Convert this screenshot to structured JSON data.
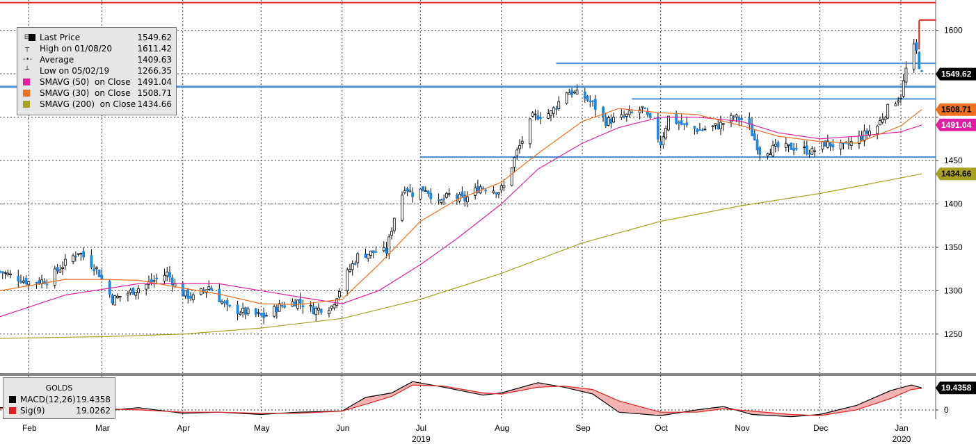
{
  "legend": {
    "rows": [
      {
        "symbol": "box",
        "color": "#000000",
        "label": "Last Price",
        "value": "1549.62"
      },
      {
        "symbol": "high",
        "label": "High on 01/08/20",
        "value": "1611.42"
      },
      {
        "symbol": "avg",
        "label": "Average",
        "value": "1409.63"
      },
      {
        "symbol": "low",
        "label": "Low on 05/02/19",
        "value": "1266.35"
      },
      {
        "symbol": "box",
        "color": "#e020a0",
        "label": "SMAVG (50)  on Close",
        "value": "1491.04"
      },
      {
        "symbol": "box",
        "color": "#f07020",
        "label": "SMAVG (30)  on Close",
        "value": "1508.71"
      },
      {
        "symbol": "box",
        "color": "#a8a020",
        "label": "SMAVG (200)  on Close",
        "value": "1434.66"
      }
    ]
  },
  "macd_legend": {
    "title": "GOLDS",
    "rows": [
      {
        "color": "#000000",
        "label": "MACD(12,26)",
        "value": "19.4358"
      },
      {
        "color": "#e02020",
        "label": "Sig(9)",
        "value": "19.0262"
      }
    ]
  },
  "badges": [
    {
      "value": "1549.62",
      "bg": "#000000",
      "fg": "#ffffff"
    },
    {
      "value": "1508.71",
      "bg": "#f07020",
      "fg": "#000000"
    },
    {
      "value": "1491.04",
      "bg": "#e020a0",
      "fg": "#ffffff"
    },
    {
      "value": "1434.66",
      "bg": "#a8a020",
      "fg": "#000000"
    },
    {
      "value": "19.4358",
      "bg": "#000000",
      "fg": "#ffffff"
    }
  ],
  "chart_data": [
    {
      "type": "candlestick",
      "title": "",
      "ylim": [
        1205,
        1635
      ],
      "y_ticks": [
        1250,
        1300,
        1350,
        1400,
        1450,
        1500,
        1550,
        1600
      ],
      "y_tick_labels": [
        "1250",
        "1300",
        "1350",
        "1400",
        "1450",
        "",
        "",
        "1600"
      ],
      "x_range": [
        "2019-01-21",
        "2020-01-09"
      ],
      "x_ticks": [
        {
          "date": "2019-02-01",
          "label": "Feb"
        },
        {
          "date": "2019-03-01",
          "label": "Mar"
        },
        {
          "date": "2019-04-01",
          "label": "Apr"
        },
        {
          "date": "2019-05-01",
          "label": "May"
        },
        {
          "date": "2019-06-01",
          "label": "Jun"
        },
        {
          "date": "2019-07-01",
          "label": "Jul"
        },
        {
          "date": "2019-08-01",
          "label": "Aug"
        },
        {
          "date": "2019-09-01",
          "label": "Sep"
        },
        {
          "date": "2019-10-01",
          "label": "Oct"
        },
        {
          "date": "2019-11-01",
          "label": "Nov"
        },
        {
          "date": "2019-12-01",
          "label": "Dec"
        },
        {
          "date": "2020-01-01",
          "label": "Jan"
        }
      ],
      "year_labels": [
        {
          "date": "2019-07-01",
          "label": "2019"
        },
        {
          "date": "2020-01-01",
          "label": "2020"
        }
      ],
      "price_path": [
        [
          "2019-01-21",
          1322
        ],
        [
          "2019-02-01",
          1310
        ],
        [
          "2019-02-08",
          1312
        ],
        [
          "2019-02-15",
          1332
        ],
        [
          "2019-02-20",
          1345
        ],
        [
          "2019-02-27",
          1325
        ],
        [
          "2019-03-05",
          1290
        ],
        [
          "2019-03-13",
          1300
        ],
        [
          "2019-03-20",
          1310
        ],
        [
          "2019-03-26",
          1320
        ],
        [
          "2019-03-31",
          1298
        ],
        [
          "2019-04-05",
          1292
        ],
        [
          "2019-04-11",
          1305
        ],
        [
          "2019-04-18",
          1280
        ],
        [
          "2019-04-25",
          1275
        ],
        [
          "2019-05-02",
          1270
        ],
        [
          "2019-05-08",
          1282
        ],
        [
          "2019-05-15",
          1288
        ],
        [
          "2019-05-21",
          1278
        ],
        [
          "2019-05-28",
          1282
        ],
        [
          "2019-06-03",
          1320
        ],
        [
          "2019-06-07",
          1340
        ],
        [
          "2019-06-14",
          1345
        ],
        [
          "2019-06-18",
          1345
        ],
        [
          "2019-06-21",
          1385
        ],
        [
          "2019-06-25",
          1420
        ],
        [
          "2019-06-28",
          1412
        ],
        [
          "2019-07-03",
          1418
        ],
        [
          "2019-07-08",
          1400
        ],
        [
          "2019-07-12",
          1410
        ],
        [
          "2019-07-18",
          1405
        ],
        [
          "2019-07-24",
          1420
        ],
        [
          "2019-07-31",
          1415
        ],
        [
          "2019-08-02",
          1420
        ],
        [
          "2019-08-07",
          1460
        ],
        [
          "2019-08-13",
          1500
        ],
        [
          "2019-08-20",
          1505
        ],
        [
          "2019-08-26",
          1530
        ],
        [
          "2019-09-01",
          1525
        ],
        [
          "2019-09-05",
          1515
        ],
        [
          "2019-09-10",
          1495
        ],
        [
          "2019-09-17",
          1500
        ],
        [
          "2019-09-24",
          1510
        ],
        [
          "2019-09-28",
          1490
        ],
        [
          "2019-10-01",
          1470
        ],
        [
          "2019-10-04",
          1500
        ],
        [
          "2019-10-10",
          1490
        ],
        [
          "2019-10-16",
          1485
        ],
        [
          "2019-10-23",
          1490
        ],
        [
          "2019-10-29",
          1500
        ],
        [
          "2019-11-03",
          1495
        ],
        [
          "2019-11-08",
          1460
        ],
        [
          "2019-11-15",
          1465
        ],
        [
          "2019-11-22",
          1465
        ],
        [
          "2019-11-28",
          1460
        ],
        [
          "2019-12-03",
          1470
        ],
        [
          "2019-12-10",
          1465
        ],
        [
          "2019-12-17",
          1478
        ],
        [
          "2019-12-23",
          1490
        ],
        [
          "2019-12-27",
          1510
        ],
        [
          "2020-01-01",
          1525
        ],
        [
          "2020-01-03",
          1555
        ],
        [
          "2020-01-06",
          1580
        ],
        [
          "2020-01-07",
          1575
        ],
        [
          "2020-01-08",
          1560
        ],
        [
          "2020-01-09",
          1549.62
        ]
      ],
      "last_price": 1549.62,
      "high": {
        "date": "2020-01-08",
        "value": 1611.42
      },
      "low": {
        "date": "2019-05-02",
        "value": 1266.35
      },
      "average": 1409.63,
      "series": [
        {
          "name": "SMAVG (50)  on Close",
          "color": "#e020a0",
          "points": [
            [
              "2019-01-21",
              1270
            ],
            [
              "2019-02-15",
              1295
            ],
            [
              "2019-03-15",
              1308
            ],
            [
              "2019-04-15",
              1308
            ],
            [
              "2019-05-15",
              1293
            ],
            [
              "2019-06-01",
              1285
            ],
            [
              "2019-06-15",
              1300
            ],
            [
              "2019-07-01",
              1330
            ],
            [
              "2019-07-15",
              1360
            ],
            [
              "2019-08-01",
              1400
            ],
            [
              "2019-08-15",
              1440
            ],
            [
              "2019-09-01",
              1470
            ],
            [
              "2019-09-15",
              1488
            ],
            [
              "2019-10-01",
              1500
            ],
            [
              "2019-10-15",
              1500
            ],
            [
              "2019-11-01",
              1495
            ],
            [
              "2019-11-15",
              1482
            ],
            [
              "2019-12-01",
              1475
            ],
            [
              "2019-12-15",
              1478
            ],
            [
              "2020-01-01",
              1483
            ],
            [
              "2020-01-09",
              1491.04
            ]
          ]
        },
        {
          "name": "SMAVG (30)  on Close",
          "color": "#f07020",
          "points": [
            [
              "2019-01-21",
              1300
            ],
            [
              "2019-02-15",
              1313
            ],
            [
              "2019-03-01",
              1313
            ],
            [
              "2019-03-15",
              1312
            ],
            [
              "2019-04-01",
              1303
            ],
            [
              "2019-04-15",
              1296
            ],
            [
              "2019-05-01",
              1285
            ],
            [
              "2019-05-15",
              1284
            ],
            [
              "2019-06-01",
              1290
            ],
            [
              "2019-06-15",
              1330
            ],
            [
              "2019-07-01",
              1380
            ],
            [
              "2019-07-15",
              1405
            ],
            [
              "2019-08-01",
              1425
            ],
            [
              "2019-08-15",
              1458
            ],
            [
              "2019-09-01",
              1495
            ],
            [
              "2019-09-15",
              1510
            ],
            [
              "2019-10-01",
              1505
            ],
            [
              "2019-10-15",
              1503
            ],
            [
              "2019-11-01",
              1490
            ],
            [
              "2019-11-15",
              1478
            ],
            [
              "2019-12-01",
              1472
            ],
            [
              "2019-12-15",
              1470
            ],
            [
              "2020-01-01",
              1490
            ],
            [
              "2020-01-09",
              1508.71
            ]
          ]
        },
        {
          "name": "SMAVG (200)  on Close",
          "color": "#a8a020",
          "points": [
            [
              "2019-01-21",
              1245
            ],
            [
              "2019-03-01",
              1247
            ],
            [
              "2019-04-01",
              1250
            ],
            [
              "2019-05-01",
              1257
            ],
            [
              "2019-06-01",
              1268
            ],
            [
              "2019-07-01",
              1290
            ],
            [
              "2019-08-01",
              1320
            ],
            [
              "2019-09-01",
              1355
            ],
            [
              "2019-10-01",
              1380
            ],
            [
              "2019-11-01",
              1398
            ],
            [
              "2019-12-01",
              1412
            ],
            [
              "2020-01-09",
              1434.66
            ]
          ]
        }
      ],
      "horizontal_lines": [
        {
          "value": 1632,
          "color": "#e02020",
          "from": "2019-01-21",
          "to": "2020-01-09"
        },
        {
          "value": 1612,
          "color": "#e02020",
          "from": "2020-01-08",
          "to": "2020-01-09"
        },
        {
          "value": 1562,
          "color": "#4a90d0",
          "from": "2019-08-22",
          "to": "2020-01-09"
        },
        {
          "value": 1535,
          "color": "#4a90d0",
          "from": "2019-01-21",
          "to": "2020-01-09"
        },
        {
          "value": 1521,
          "color": "#4a90d0",
          "from": "2019-09-20",
          "to": "2020-01-09"
        },
        {
          "value": 1454,
          "color": "#4a90d0",
          "from": "2019-07-01",
          "to": "2020-01-09"
        }
      ]
    },
    {
      "type": "line",
      "title": "GOLDS",
      "ylim": [
        -8,
        30
      ],
      "y_ticks": [
        0
      ],
      "y_tick_labels": [
        "0"
      ],
      "series": [
        {
          "name": "MACD(12,26)",
          "color": "#000000",
          "points": [
            [
              "2019-01-21",
              2
            ],
            [
              "2019-02-15",
              3
            ],
            [
              "2019-03-01",
              -1
            ],
            [
              "2019-03-15",
              2
            ],
            [
              "2019-04-01",
              -3
            ],
            [
              "2019-04-15",
              -2
            ],
            [
              "2019-05-01",
              -4
            ],
            [
              "2019-05-15",
              -2
            ],
            [
              "2019-06-01",
              -1
            ],
            [
              "2019-06-10",
              11
            ],
            [
              "2019-06-20",
              15
            ],
            [
              "2019-06-28",
              25
            ],
            [
              "2019-07-10",
              20
            ],
            [
              "2019-07-25",
              13
            ],
            [
              "2019-08-01",
              15
            ],
            [
              "2019-08-15",
              24
            ],
            [
              "2019-08-25",
              20
            ],
            [
              "2019-09-05",
              14
            ],
            [
              "2019-09-15",
              -2
            ],
            [
              "2019-10-01",
              -5
            ],
            [
              "2019-10-15",
              0
            ],
            [
              "2019-10-25",
              3
            ],
            [
              "2019-11-05",
              -4
            ],
            [
              "2019-11-20",
              -6
            ],
            [
              "2019-12-01",
              -4
            ],
            [
              "2019-12-15",
              4
            ],
            [
              "2019-12-28",
              17
            ],
            [
              "2020-01-05",
              22
            ],
            [
              "2020-01-09",
              19.4358
            ]
          ]
        },
        {
          "name": "Sig(9)",
          "color": "#e02020",
          "points": [
            [
              "2019-01-21",
              1
            ],
            [
              "2019-02-15",
              2
            ],
            [
              "2019-03-01",
              1
            ],
            [
              "2019-03-15",
              0
            ],
            [
              "2019-04-01",
              -2
            ],
            [
              "2019-04-15",
              -2
            ],
            [
              "2019-05-01",
              -3
            ],
            [
              "2019-05-15",
              -3
            ],
            [
              "2019-06-01",
              -1
            ],
            [
              "2019-06-10",
              5
            ],
            [
              "2019-06-20",
              12
            ],
            [
              "2019-06-28",
              22
            ],
            [
              "2019-07-10",
              21
            ],
            [
              "2019-07-25",
              15
            ],
            [
              "2019-08-01",
              14
            ],
            [
              "2019-08-15",
              20
            ],
            [
              "2019-08-25",
              21
            ],
            [
              "2019-09-05",
              18
            ],
            [
              "2019-09-15",
              8
            ],
            [
              "2019-10-01",
              -2
            ],
            [
              "2019-10-15",
              -2
            ],
            [
              "2019-10-25",
              1
            ],
            [
              "2019-11-05",
              -1
            ],
            [
              "2019-11-20",
              -4
            ],
            [
              "2019-12-01",
              -5
            ],
            [
              "2019-12-15",
              0
            ],
            [
              "2019-12-28",
              10
            ],
            [
              "2020-01-05",
              18
            ],
            [
              "2020-01-09",
              19.0262
            ]
          ]
        }
      ]
    }
  ]
}
